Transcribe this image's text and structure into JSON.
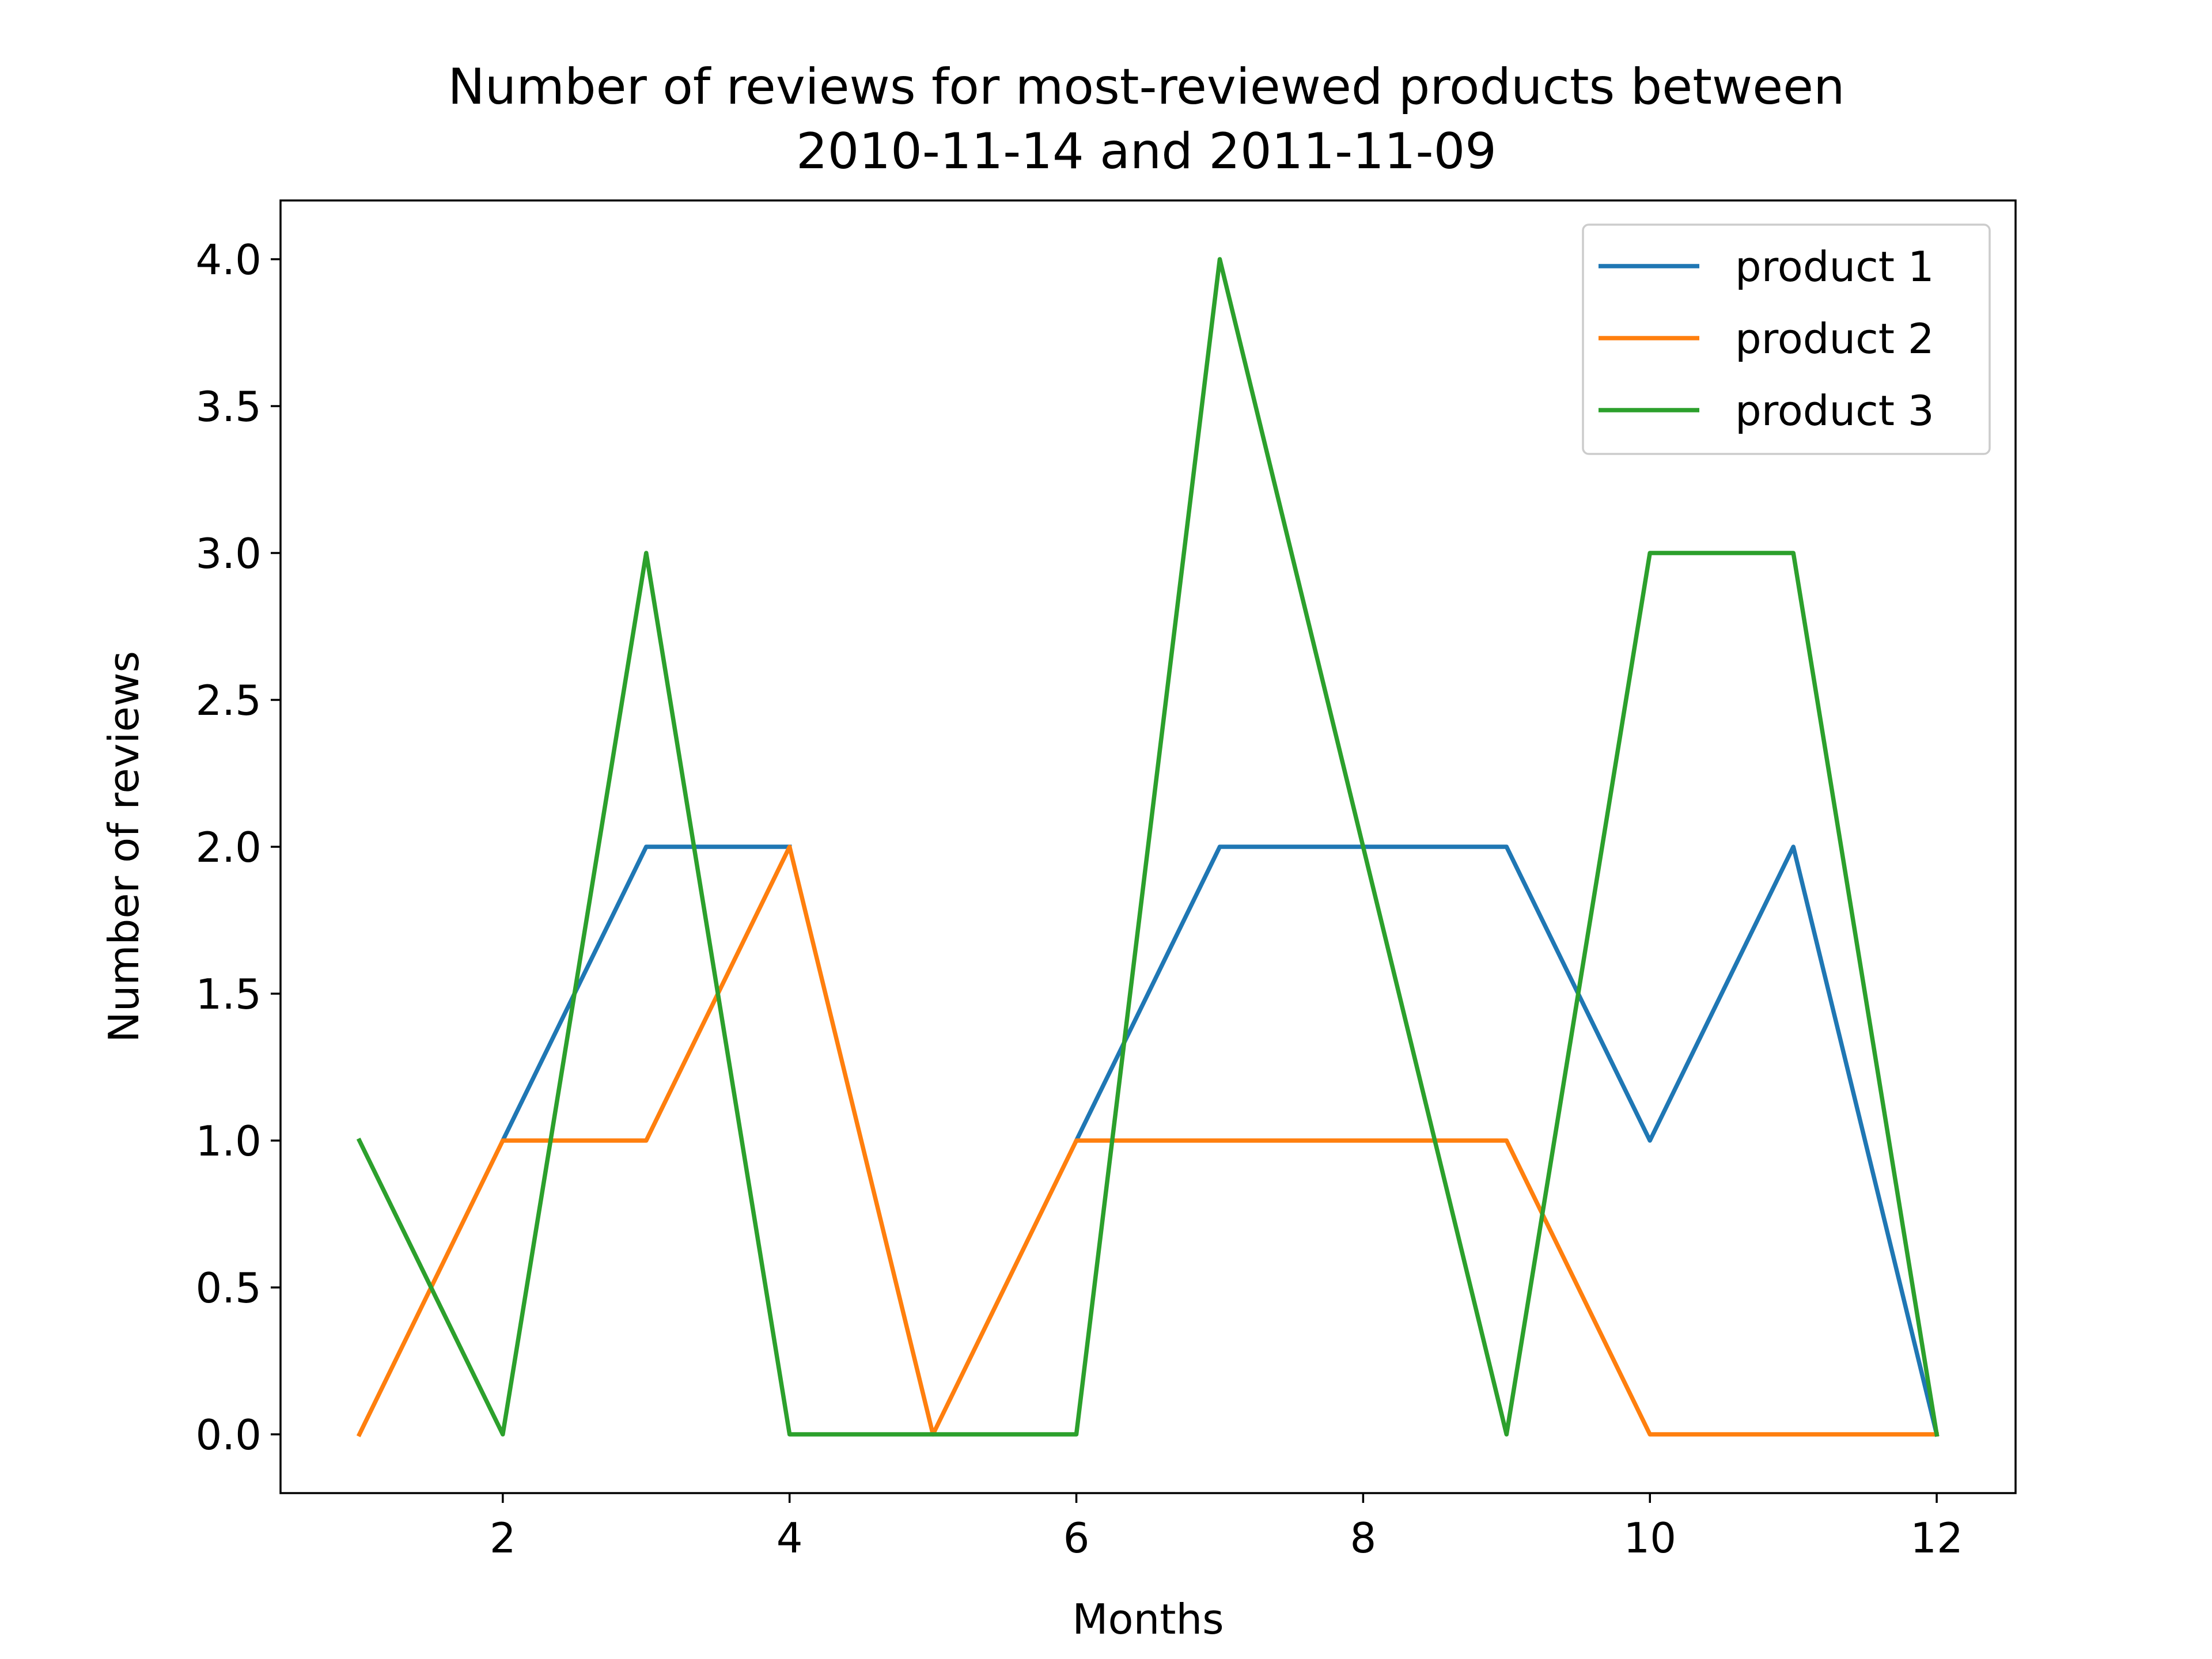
{
  "chart_data": {
    "type": "line",
    "title_lines": [
      "Number of reviews for most-reviewed products between",
      "2010-11-14 and 2011-11-09"
    ],
    "xlabel": "Months",
    "ylabel": "Number of reviews",
    "x": [
      1,
      2,
      3,
      4,
      5,
      6,
      7,
      8,
      9,
      10,
      11,
      12
    ],
    "xlim": [
      0.45,
      12.55
    ],
    "ylim": [
      -0.2,
      4.2
    ],
    "xticks": [
      2,
      4,
      6,
      8,
      10,
      12
    ],
    "yticks": [
      0.0,
      0.5,
      1.0,
      1.5,
      2.0,
      2.5,
      3.0,
      3.5,
      4.0
    ],
    "xtick_labels": [
      "2",
      "4",
      "6",
      "8",
      "10",
      "12"
    ],
    "ytick_labels": [
      "0.0",
      "0.5",
      "1.0",
      "1.5",
      "2.0",
      "2.5",
      "3.0",
      "3.5",
      "4.0"
    ],
    "grid": false,
    "legend_position": "top-right",
    "series": [
      {
        "name": "product 1",
        "color": "#1f77b4",
        "values": [
          null,
          1,
          2,
          2,
          null,
          1,
          2,
          2,
          2,
          1,
          2,
          0
        ]
      },
      {
        "name": "product 2",
        "color": "#ff7f0e",
        "values": [
          0,
          1,
          1,
          2,
          0,
          1,
          1,
          1,
          1,
          0,
          0,
          0
        ]
      },
      {
        "name": "product 3",
        "color": "#2ca02c",
        "values": [
          1,
          0,
          3,
          0,
          0,
          0,
          4,
          2,
          0,
          3,
          3,
          0
        ]
      }
    ]
  }
}
